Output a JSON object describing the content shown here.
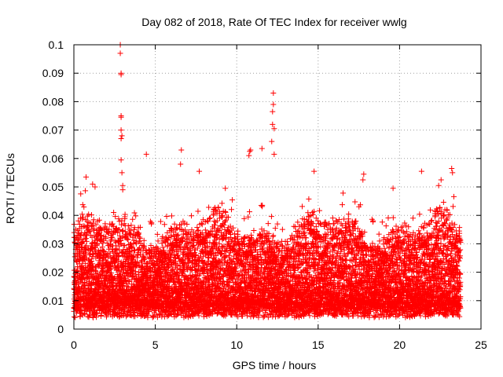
{
  "chart_data": {
    "type": "scatter",
    "title": "Day 082 of 2018, Rate Of TEC Index for receiver wwlg",
    "xlabel": "GPS time / hours",
    "ylabel": "ROTI / TECUs",
    "xlim": [
      0,
      25
    ],
    "ylim": [
      0,
      0.1
    ],
    "x_ticks": [
      0,
      5,
      10,
      15,
      20,
      25
    ],
    "x_tick_labels": [
      "0",
      "5",
      "10",
      "15",
      "20",
      "25"
    ],
    "y_ticks": [
      0,
      0.01,
      0.02,
      0.03,
      0.04,
      0.05,
      0.06,
      0.07,
      0.08,
      0.09,
      0.1
    ],
    "y_tick_labels": [
      "0",
      "0.01",
      "0.02",
      "0.03",
      "0.04",
      "0.05",
      "0.06",
      "0.07",
      "0.08",
      "0.09",
      "0.1"
    ],
    "grid": true,
    "marker": "+",
    "series": [
      {
        "name": "ROTI",
        "color": "#ff0000",
        "time_range_hours": [
          0,
          23.75
        ],
        "baseline_min": 0.004,
        "note_points": "dense cloud of samples, mostly between 0.005 and 0.035 TECU",
        "x": [
          2.85,
          2.85,
          2.9,
          2.9,
          2.9,
          2.9,
          2.9,
          2.95,
          2.9,
          2.9,
          2.95,
          3.0,
          3.0,
          6.6,
          6.55,
          12.25,
          12.25,
          12.2,
          12.2,
          12.3,
          12.15,
          12.3,
          10.85,
          10.8,
          10.75,
          11.55,
          4.45,
          14.75,
          21.35,
          23.2,
          23.25,
          22.55,
          22.4,
          17.8,
          17.75,
          19.6,
          9.3,
          7.7,
          0.75,
          1.15,
          1.3
        ],
        "y": [
          0.1,
          0.097,
          0.09,
          0.0895,
          0.075,
          0.0745,
          0.07,
          0.068,
          0.067,
          0.0595,
          0.055,
          0.0505,
          0.049,
          0.063,
          0.058,
          0.083,
          0.079,
          0.0765,
          0.072,
          0.0705,
          0.066,
          0.0615,
          0.063,
          0.0625,
          0.061,
          0.0635,
          0.0615,
          0.0555,
          0.0555,
          0.0565,
          0.055,
          0.0525,
          0.0505,
          0.0545,
          0.0525,
          0.0495,
          0.0495,
          0.0555,
          0.0535,
          0.051,
          0.05
        ]
      }
    ]
  }
}
